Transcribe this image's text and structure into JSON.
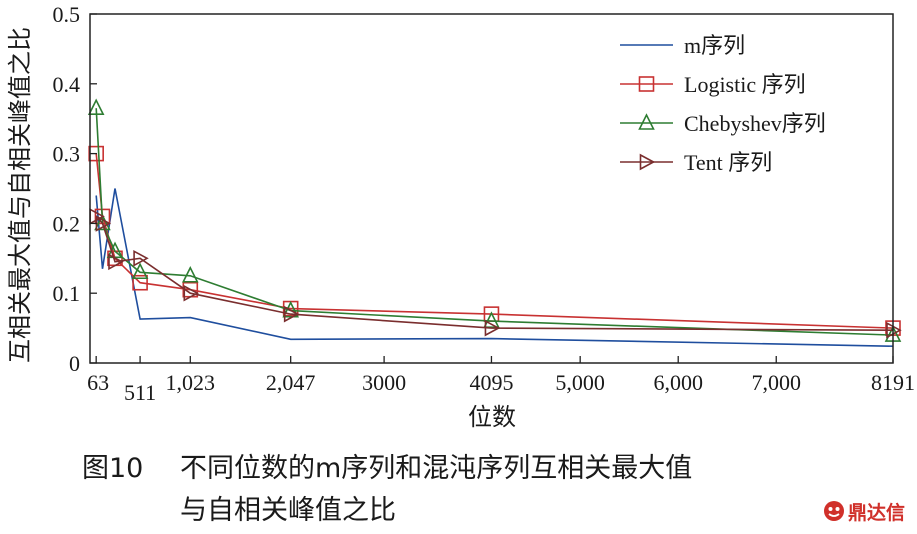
{
  "chart_data": {
    "type": "line",
    "xlabel": "位数",
    "ylabel": "互相关最大值与自相关峰值之比",
    "xlim": [
      0,
      8191
    ],
    "ylim": [
      0,
      0.5
    ],
    "yticks": [
      0,
      0.1,
      0.2,
      0.3,
      0.4,
      0.5
    ],
    "ytick_labels": [
      "0",
      "0.1",
      "0.2",
      "0.3",
      "0.4",
      "0.5"
    ],
    "xticks": [
      63,
      511,
      1023,
      2047,
      3000,
      4095,
      5000,
      6000,
      7000,
      8191
    ],
    "xtick_labels": [
      "63",
      "511",
      "1,023",
      "2,047",
      "3000",
      "4095",
      "5,000",
      "6,000",
      "7,000",
      "8191"
    ],
    "legend_position": "top-right",
    "series": [
      {
        "name": "m序列",
        "marker": "none",
        "color": "#1f4e9e",
        "x": [
          63,
          127,
          255,
          511,
          1023,
          2047,
          4095,
          8191
        ],
        "y": [
          0.24,
          0.135,
          0.25,
          0.063,
          0.065,
          0.034,
          0.035,
          0.024
        ]
      },
      {
        "name": "Logistic 序列",
        "marker": "square",
        "color": "#c83232",
        "x": [
          63,
          127,
          255,
          511,
          1023,
          2047,
          4095,
          8191
        ],
        "y": [
          0.3,
          0.21,
          0.15,
          0.115,
          0.105,
          0.078,
          0.07,
          0.05
        ]
      },
      {
        "name": "Chebyshev序列",
        "marker": "triangle-up",
        "color": "#2e7d32",
        "x": [
          63,
          127,
          255,
          511,
          1023,
          2047,
          4095,
          8191
        ],
        "y": [
          0.365,
          0.2,
          0.16,
          0.13,
          0.125,
          0.075,
          0.06,
          0.04
        ]
      },
      {
        "name": "Tent 序列",
        "marker": "triangle-right",
        "color": "#7a2e2e",
        "x": [
          63,
          127,
          255,
          511,
          1023,
          2047,
          4095,
          8191
        ],
        "y": [
          0.21,
          0.2,
          0.145,
          0.15,
          0.1,
          0.07,
          0.05,
          0.047
        ]
      }
    ]
  },
  "caption": {
    "figure_number": "图10",
    "line1": "不同位数的m序列和混沌序列互相关最大值",
    "line2": "与自相关峰值之比"
  },
  "watermark": {
    "text": "鼎达信",
    "logo_icon": "face-logo-icon",
    "color": "#d0302a"
  }
}
